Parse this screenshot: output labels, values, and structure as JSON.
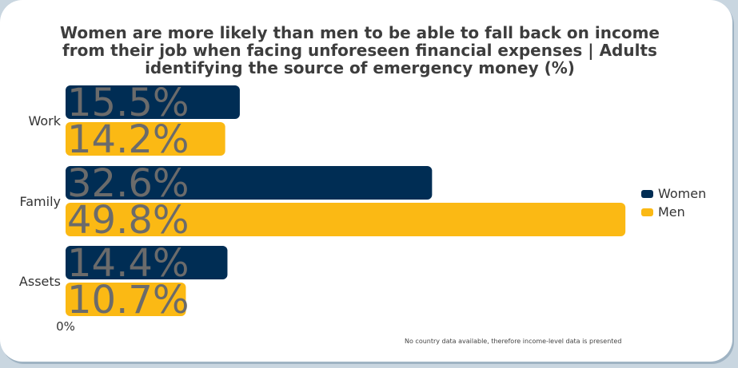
{
  "chart_data": {
    "type": "bar",
    "orientation": "horizontal",
    "title": "Women are more likely than men to be able to fall back on income from their job when facing unforeseen financial expenses | Adults identifying the source of emergency money (%)",
    "categories": [
      "Work",
      "Family",
      "Assets"
    ],
    "series": [
      {
        "name": "Women",
        "color": "#002d54",
        "values": [
          15.5,
          32.6,
          14.4
        ],
        "labels": [
          "15.5%",
          "32.6%",
          "14.4%"
        ]
      },
      {
        "name": "Men",
        "color": "#fbb914",
        "values": [
          14.2,
          49.8,
          10.7
        ],
        "labels": [
          "14.2%",
          "49.8%",
          "10.7%"
        ]
      }
    ],
    "xaxis_tick_label": "0%",
    "xlim": [
      0,
      50
    ],
    "grid": false,
    "legend_position": "right",
    "note": "No country data available, therefore income-level data is presented"
  }
}
